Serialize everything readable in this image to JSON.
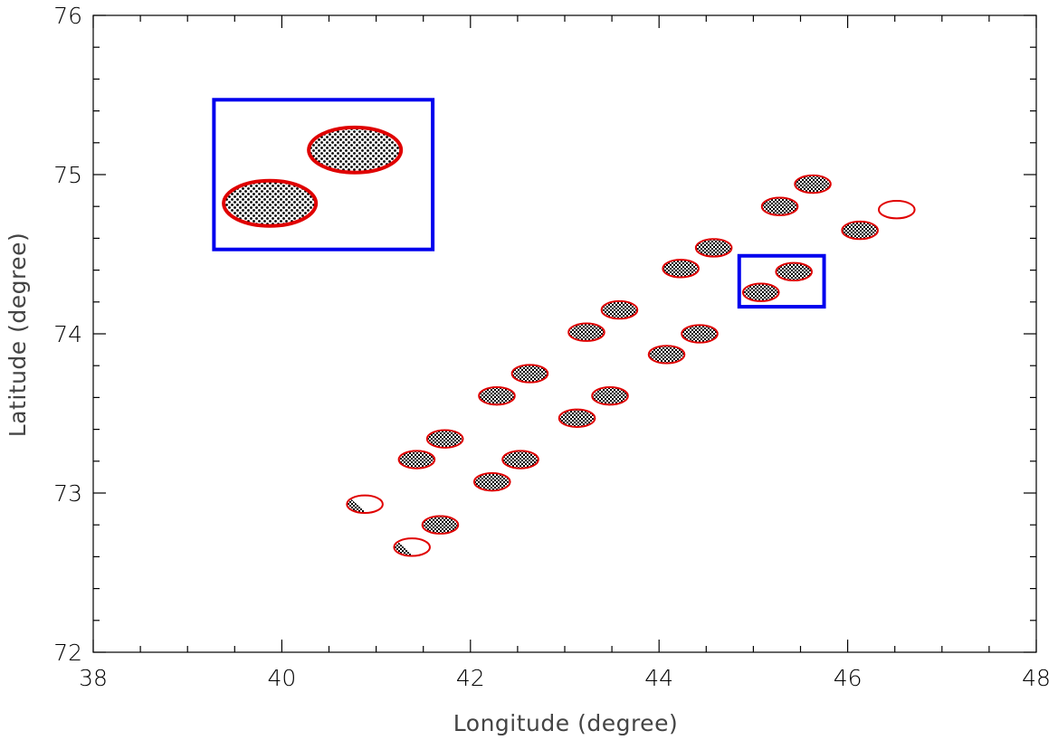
{
  "chart_data": {
    "type": "scatter",
    "title": "",
    "xlabel": "Longitude (degree)",
    "ylabel": "Latitude (degree)",
    "xlim": [
      38,
      48
    ],
    "ylim": [
      72,
      76
    ],
    "xticks": [
      "38",
      "40",
      "42",
      "44",
      "46",
      "48"
    ],
    "yticks": [
      "72",
      "73",
      "74",
      "75",
      "76"
    ],
    "grid": false,
    "footprint": {
      "semi_axis_lon": 0.19,
      "semi_axis_lat": 0.055
    },
    "points": [
      {
        "lon": 45.63,
        "lat": 74.94,
        "fill": "full"
      },
      {
        "lon": 45.28,
        "lat": 74.8,
        "fill": "full"
      },
      {
        "lon": 46.52,
        "lat": 74.78,
        "fill": "none"
      },
      {
        "lon": 46.13,
        "lat": 74.65,
        "fill": "full"
      },
      {
        "lon": 44.58,
        "lat": 74.54,
        "fill": "full"
      },
      {
        "lon": 44.23,
        "lat": 74.41,
        "fill": "full"
      },
      {
        "lon": 45.43,
        "lat": 74.39,
        "fill": "full"
      },
      {
        "lon": 45.08,
        "lat": 74.26,
        "fill": "full"
      },
      {
        "lon": 43.58,
        "lat": 74.15,
        "fill": "full"
      },
      {
        "lon": 43.23,
        "lat": 74.01,
        "fill": "full"
      },
      {
        "lon": 44.43,
        "lat": 74.0,
        "fill": "full"
      },
      {
        "lon": 44.08,
        "lat": 73.87,
        "fill": "full"
      },
      {
        "lon": 42.63,
        "lat": 73.75,
        "fill": "full"
      },
      {
        "lon": 42.28,
        "lat": 73.61,
        "fill": "full"
      },
      {
        "lon": 43.48,
        "lat": 73.61,
        "fill": "full"
      },
      {
        "lon": 43.13,
        "lat": 73.47,
        "fill": "full"
      },
      {
        "lon": 41.73,
        "lat": 73.34,
        "fill": "full"
      },
      {
        "lon": 41.43,
        "lat": 73.21,
        "fill": "full"
      },
      {
        "lon": 42.53,
        "lat": 73.21,
        "fill": "full"
      },
      {
        "lon": 42.23,
        "lat": 73.07,
        "fill": "full"
      },
      {
        "lon": 40.88,
        "lat": 72.93,
        "fill": "partial"
      },
      {
        "lon": 41.68,
        "lat": 72.8,
        "fill": "full"
      },
      {
        "lon": 41.38,
        "lat": 72.66,
        "fill": "partial"
      }
    ],
    "selection_box": {
      "lon_range": [
        44.85,
        45.75
      ],
      "lat_range": [
        74.17,
        74.49
      ]
    },
    "inset": {
      "lon_range": [
        39.28,
        41.6
      ],
      "lat_range": [
        74.53,
        75.47
      ]
    },
    "colors": {
      "outline": "#e00000",
      "box": "#0000ee",
      "hatch": "#000000",
      "axis": "#000000"
    }
  }
}
